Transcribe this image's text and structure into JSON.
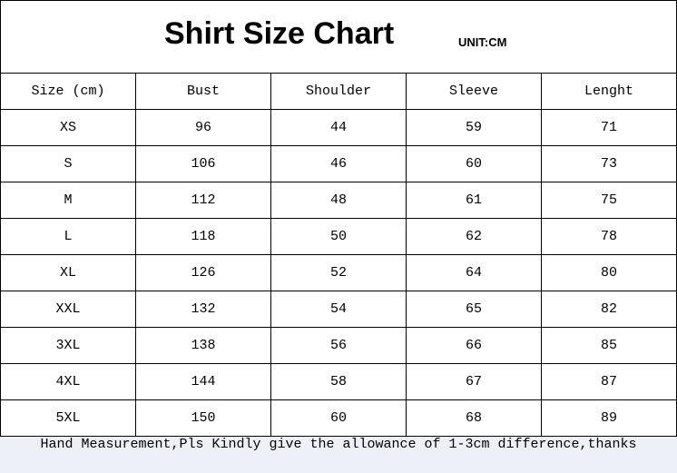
{
  "title": "Shirt Size Chart",
  "unit": "UNIT:CM",
  "headers": [
    "Size (cm)",
    "Bust",
    "Shoulder",
    "Sleeve",
    "Lenght"
  ],
  "rows": [
    [
      "XS",
      "96",
      "44",
      "59",
      "71"
    ],
    [
      "S",
      "106",
      "46",
      "60",
      "73"
    ],
    [
      "M",
      "112",
      "48",
      "61",
      "75"
    ],
    [
      "L",
      "118",
      "50",
      "62",
      "78"
    ],
    [
      "XL",
      "126",
      "52",
      "64",
      "80"
    ],
    [
      "XXL",
      "132",
      "54",
      "65",
      "82"
    ],
    [
      "3XL",
      "138",
      "56",
      "66",
      "85"
    ],
    [
      "4XL",
      "144",
      "58",
      "67",
      "87"
    ],
    [
      "5XL",
      "150",
      "60",
      "68",
      "89"
    ]
  ],
  "footer": "Hand Measurement,Pls Kindly give the allowance of 1-3cm difference,thanks"
}
